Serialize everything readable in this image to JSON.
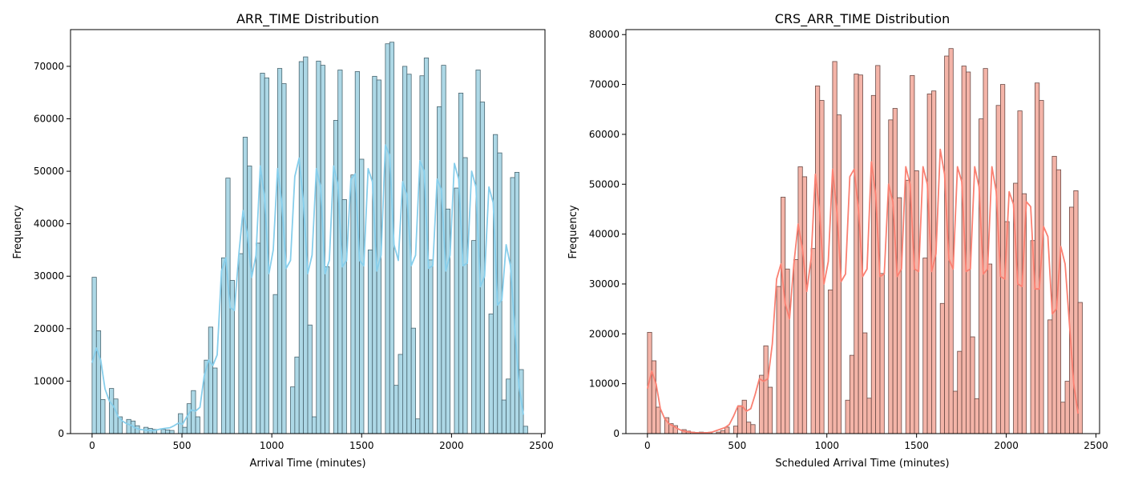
{
  "chart_data": [
    {
      "type": "histogram",
      "title": "ARR_TIME Distribution",
      "xlabel": "Arrival Time (minutes)",
      "ylabel": "Frequency",
      "xlim": [
        -120,
        2520
      ],
      "ylim": [
        0,
        77000
      ],
      "xticks": [
        0,
        500,
        1000,
        1500,
        2000,
        2500
      ],
      "yticks": [
        0,
        10000,
        20000,
        30000,
        40000,
        50000,
        60000,
        70000
      ],
      "bin_start": 0,
      "bin_width": 24,
      "bar_fill": "#add8e6",
      "bar_edge": "#4a6670",
      "kde_color": "#87ceeb",
      "values": [
        29800,
        19600,
        6500,
        0,
        8600,
        6600,
        3200,
        0,
        2700,
        2400,
        1500,
        0,
        1200,
        1000,
        800,
        0,
        800,
        700,
        600,
        0,
        3800,
        1200,
        5700,
        8200,
        3200,
        0,
        14000,
        20300,
        12500,
        0,
        33500,
        48700,
        29200,
        0,
        34300,
        56500,
        51000,
        0,
        36300,
        68700,
        67800,
        0,
        26500,
        69600,
        66700,
        0,
        8900,
        14600,
        70900,
        71800,
        20700,
        3200,
        71000,
        70200,
        31800,
        0,
        59700,
        69300,
        44600,
        0,
        49300,
        69000,
        52300,
        0,
        35000,
        68100,
        67400,
        0,
        74300,
        74600,
        9200,
        15100,
        70000,
        68500,
        20100,
        2800,
        68200,
        71600,
        33100,
        0,
        62300,
        70200,
        42800,
        0,
        46800,
        64900,
        52600,
        0,
        36800,
        69300,
        63200,
        0,
        22800,
        57000,
        53500,
        6400,
        10400,
        48800,
        49800,
        12200,
        1400
      ],
      "kde_x": [
        0,
        24,
        48,
        72,
        96,
        120,
        144,
        168,
        192,
        216,
        240,
        264,
        288,
        312,
        336,
        360,
        384,
        408,
        432,
        456,
        480,
        504,
        528,
        552,
        576,
        600,
        624,
        648,
        672,
        696,
        720,
        744,
        768,
        792,
        816,
        840,
        864,
        888,
        912,
        936,
        960,
        984,
        1008,
        1032,
        1056,
        1080,
        1104,
        1128,
        1152,
        1176,
        1200,
        1224,
        1248,
        1272,
        1296,
        1320,
        1344,
        1368,
        1392,
        1416,
        1440,
        1464,
        1488,
        1512,
        1536,
        1560,
        1584,
        1608,
        1632,
        1656,
        1680,
        1704,
        1728,
        1752,
        1776,
        1800,
        1824,
        1848,
        1872,
        1896,
        1920,
        1944,
        1968,
        1992,
        2016,
        2040,
        2064,
        2088,
        2112,
        2136,
        2160,
        2184,
        2208,
        2232,
        2256,
        2280,
        2304,
        2328,
        2352,
        2376,
        2400
      ],
      "kde": [
        13500,
        16300,
        14000,
        8500,
        6200,
        5200,
        3300,
        2400,
        1900,
        1600,
        1100,
        800,
        700,
        600,
        550,
        700,
        900,
        1000,
        1100,
        1500,
        2000,
        1800,
        3300,
        4500,
        4300,
        5000,
        11000,
        14000,
        13000,
        15000,
        31000,
        33500,
        24000,
        23500,
        34000,
        42500,
        38000,
        29800,
        34000,
        51000,
        45000,
        30500,
        35000,
        50500,
        44000,
        31500,
        33000,
        49000,
        52500,
        44000,
        30500,
        34000,
        50500,
        47000,
        30500,
        33000,
        51000,
        47500,
        31800,
        33000,
        48500,
        49500,
        33000,
        32000,
        50500,
        48000,
        31000,
        34000,
        55000,
        53000,
        36000,
        33000,
        48000,
        45500,
        32000,
        34000,
        52000,
        50000,
        31500,
        32000,
        48500,
        46500,
        31000,
        34000,
        51500,
        48500,
        32000,
        32500,
        50000,
        47000,
        28000,
        30000,
        47000,
        44000,
        24500,
        25500,
        36000,
        32000,
        20000,
        9000,
        3600
      ]
    },
    {
      "type": "histogram",
      "title": "CRS_ARR_TIME Distribution",
      "xlabel": "Scheduled Arrival Time (minutes)",
      "ylabel": "Frequency",
      "xlim": [
        -120,
        2520
      ],
      "ylim": [
        0,
        81000
      ],
      "xticks": [
        0,
        500,
        1000,
        1500,
        2000,
        2500
      ],
      "yticks": [
        0,
        10000,
        20000,
        30000,
        40000,
        50000,
        60000,
        70000,
        80000
      ],
      "bin_start": 0,
      "bin_width": 24,
      "bar_fill": "#f4b4a8",
      "bar_edge": "#6b4a45",
      "kde_color": "#fa8072",
      "values": [
        20300,
        14600,
        5300,
        0,
        3200,
        2000,
        1600,
        0,
        800,
        500,
        300,
        0,
        300,
        200,
        200,
        0,
        300,
        600,
        1300,
        0,
        1500,
        5600,
        6700,
        2300,
        1800,
        0,
        11700,
        17600,
        9300,
        0,
        29500,
        47400,
        33000,
        0,
        34900,
        53500,
        51500,
        0,
        37100,
        69700,
        66800,
        0,
        28800,
        74600,
        63900,
        0,
        6700,
        15700,
        72100,
        71900,
        20200,
        7100,
        67800,
        73800,
        32100,
        0,
        62900,
        65200,
        47300,
        0,
        50800,
        71800,
        52700,
        0,
        35200,
        68100,
        68700,
        0,
        26100,
        75700,
        77200,
        8500,
        16500,
        73700,
        72500,
        19400,
        7000,
        63100,
        73200,
        34000,
        0,
        65800,
        70000,
        42500,
        0,
        50200,
        64700,
        48100,
        0,
        38700,
        70300,
        66800,
        0,
        22800,
        55600,
        52900,
        6300,
        10500,
        45400,
        48700,
        26300
      ],
      "kde_x": [
        0,
        24,
        48,
        72,
        96,
        120,
        144,
        168,
        192,
        216,
        240,
        264,
        288,
        312,
        336,
        360,
        384,
        408,
        432,
        456,
        480,
        504,
        528,
        552,
        576,
        600,
        624,
        648,
        672,
        696,
        720,
        744,
        768,
        792,
        816,
        840,
        864,
        888,
        912,
        936,
        960,
        984,
        1008,
        1032,
        1056,
        1080,
        1104,
        1128,
        1152,
        1176,
        1200,
        1224,
        1248,
        1272,
        1296,
        1320,
        1344,
        1368,
        1392,
        1416,
        1440,
        1464,
        1488,
        1512,
        1536,
        1560,
        1584,
        1608,
        1632,
        1656,
        1680,
        1704,
        1728,
        1752,
        1776,
        1800,
        1824,
        1848,
        1872,
        1896,
        1920,
        1944,
        1968,
        1992,
        2016,
        2040,
        2064,
        2088,
        2112,
        2136,
        2160,
        2184,
        2208,
        2232,
        2256,
        2280,
        2304,
        2328,
        2352,
        2376,
        2400
      ],
      "kde": [
        9000,
        12500,
        10000,
        5000,
        3000,
        2000,
        1500,
        1000,
        600,
        400,
        300,
        200,
        150,
        150,
        200,
        300,
        600,
        900,
        1200,
        1800,
        3500,
        5500,
        5500,
        4500,
        5000,
        7800,
        11000,
        10500,
        11000,
        18000,
        31000,
        34000,
        26000,
        23000,
        34000,
        42000,
        37000,
        28500,
        35000,
        52000,
        44500,
        30000,
        34500,
        53000,
        44500,
        30500,
        32000,
        51500,
        53000,
        45000,
        31500,
        33000,
        54500,
        48000,
        31500,
        32000,
        50000,
        46500,
        31500,
        33000,
        53500,
        50000,
        33000,
        32500,
        53500,
        50000,
        32500,
        36000,
        57000,
        52000,
        35000,
        33000,
        53500,
        50500,
        32500,
        33000,
        53500,
        49500,
        32000,
        33000,
        53500,
        48500,
        31500,
        31000,
        48500,
        46000,
        30000,
        29500,
        46500,
        45500,
        29000,
        29000,
        41500,
        39500,
        24000,
        25000,
        37500,
        34000,
        22000,
        10000,
        4000
      ]
    }
  ]
}
